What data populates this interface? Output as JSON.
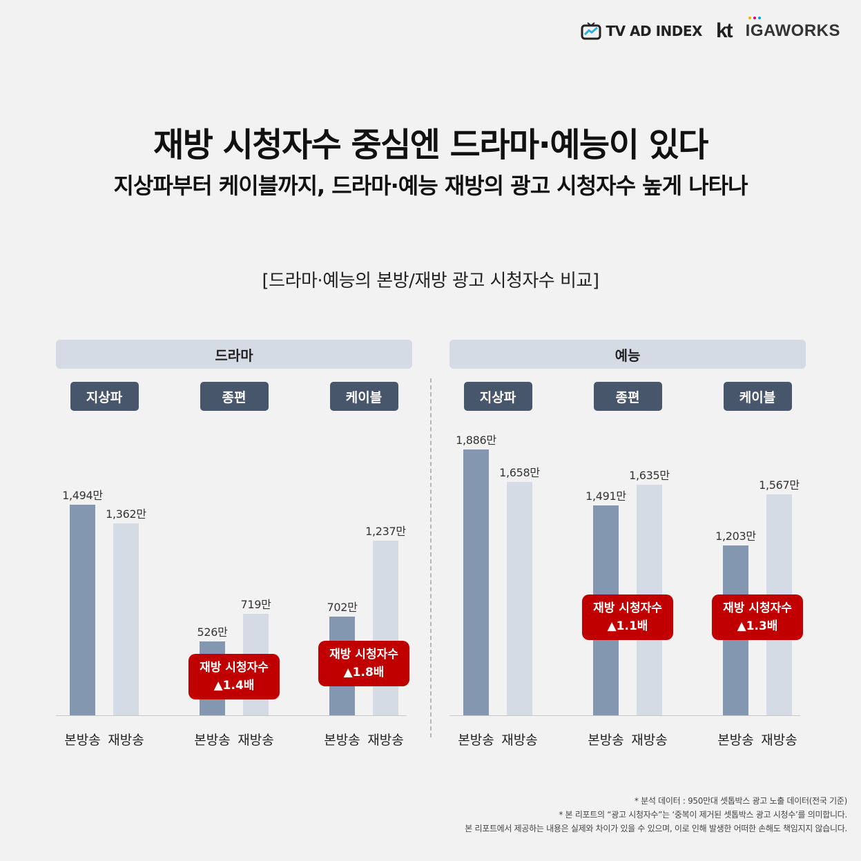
{
  "logos": {
    "tvad": "TV AD INDEX",
    "kt": "kt",
    "iga": "IGAWORKS"
  },
  "title": "재방 시청자수 중심엔 드라마·예능이 있다",
  "subtitle": "지상파부터 케이블까지, 드라마·예능 재방의 광고 시청자수 높게 나타나",
  "chart_title": "[드라마·예능의 본방/재방 광고 시청자수 비교]",
  "colors": {
    "main": "#8497b0",
    "rerun": "#d5dbe4",
    "callout": "#c00000",
    "tag": "#48566b",
    "header": "#d5dbe4"
  },
  "chart_data": {
    "type": "bar",
    "unit": "만",
    "ylim": [
      0,
      2000
    ],
    "series_names": [
      "본방송",
      "재방송"
    ],
    "panels": [
      {
        "name": "드라마",
        "groups": [
          {
            "name": "지상파",
            "values": [
              1494,
              1362
            ],
            "labels": [
              "1,494만",
              "1,362만"
            ],
            "callout": null
          },
          {
            "name": "종편",
            "values": [
              526,
              719
            ],
            "labels": [
              "526만",
              "719만"
            ],
            "callout": {
              "line1": "재방 시청자수",
              "line2": "▲1.4배"
            }
          },
          {
            "name": "케이블",
            "values": [
              702,
              1237
            ],
            "labels": [
              "702만",
              "1,237만"
            ],
            "callout": {
              "line1": "재방 시청자수",
              "line2": "▲1.8배"
            }
          }
        ]
      },
      {
        "name": "예능",
        "groups": [
          {
            "name": "지상파",
            "values": [
              1886,
              1658
            ],
            "labels": [
              "1,886만",
              "1,658만"
            ],
            "callout": null
          },
          {
            "name": "종편",
            "values": [
              1491,
              1635
            ],
            "labels": [
              "1,491만",
              "1,635만"
            ],
            "callout": {
              "line1": "재방 시청자수",
              "line2": "▲1.1배"
            }
          },
          {
            "name": "케이블",
            "values": [
              1203,
              1567
            ],
            "labels": [
              "1,203만",
              "1,567만"
            ],
            "callout": {
              "line1": "재방 시청자수",
              "line2": "▲1.3배"
            }
          }
        ]
      }
    ]
  },
  "footnotes": [
    "* 분석 데이터 : 950만대 셋톱박스 광고 노출 데이터(전국 기준)",
    "* 본 리포트의 “광고 시청자수”는 ‘중복이 제거된 셋톱박스 광고 시청수’를 의미합니다.",
    "본 리포트에서 제공하는 내용은 실제와 차이가 있을 수 있으며, 이로 인해 발생한 어떠한 손해도 책임지지 않습니다."
  ]
}
